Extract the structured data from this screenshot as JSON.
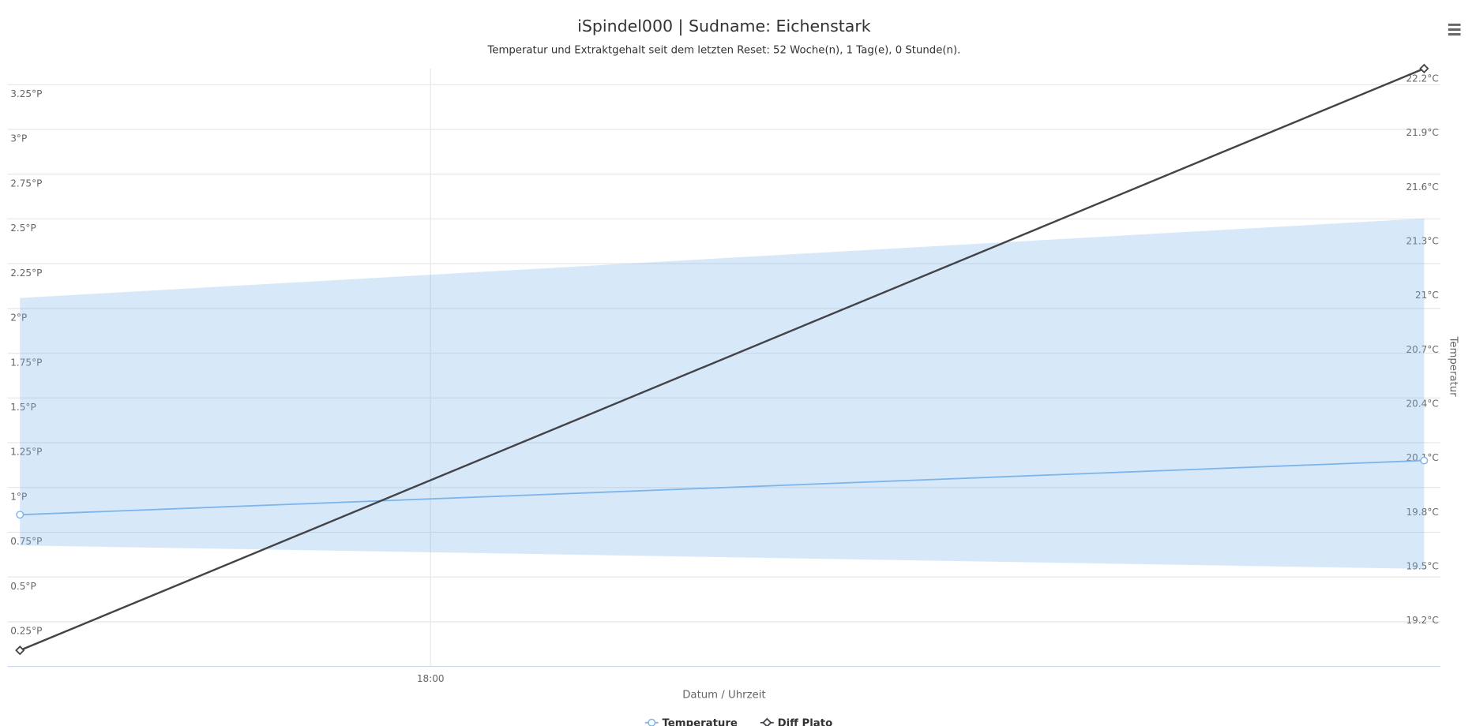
{
  "chart_data": {
    "type": "line",
    "title": "iSpindel000 | Sudname: Eichenstark",
    "subtitle": "Temperatur und Extraktgehalt seit dem letzten Reset: 52 Woche(n), 1 Tag(e), 0 Stunde(n).",
    "x_label": "Datum / Uhrzeit",
    "y2_label": "Temperatur",
    "x": [
      17.0,
      20.42
    ],
    "xlim": [
      16.97,
      20.46
    ],
    "xticks": [
      {
        "value": 18,
        "label": "18:00"
      }
    ],
    "ylim": [
      0,
      3.34
    ],
    "yticks": [
      {
        "value": 0.25,
        "label": "0.25°P"
      },
      {
        "value": 0.5,
        "label": "0.5°P"
      },
      {
        "value": 0.75,
        "label": "0.75°P"
      },
      {
        "value": 1,
        "label": "1°P"
      },
      {
        "value": 1.25,
        "label": "1.25°P"
      },
      {
        "value": 1.5,
        "label": "1.5°P"
      },
      {
        "value": 1.75,
        "label": "1.75°P"
      },
      {
        "value": 2,
        "label": "2°P"
      },
      {
        "value": 2.25,
        "label": "2.25°P"
      },
      {
        "value": 2.5,
        "label": "2.5°P"
      },
      {
        "value": 2.75,
        "label": "2.75°P"
      },
      {
        "value": 3,
        "label": "3°P"
      },
      {
        "value": 3.25,
        "label": "3.25°P"
      }
    ],
    "y2lim": [
      18.92,
      22.23
    ],
    "y2ticks": [
      {
        "value": 19.2,
        "label": "19.2°C"
      },
      {
        "value": 19.5,
        "label": "19.5°C"
      },
      {
        "value": 19.8,
        "label": "19.8°C"
      },
      {
        "value": 20.1,
        "label": "20.1°C"
      },
      {
        "value": 20.4,
        "label": "20.4°C"
      },
      {
        "value": 20.7,
        "label": "20.7°C"
      },
      {
        "value": 21,
        "label": "21°C"
      },
      {
        "value": 21.3,
        "label": "21.3°C"
      },
      {
        "value": 21.6,
        "label": "21.6°C"
      },
      {
        "value": 21.9,
        "label": "21.9°C"
      },
      {
        "value": 22.2,
        "label": "22.2°C"
      }
    ],
    "grid": true,
    "legend": "bottom",
    "ranges": [
      {
        "color": "#7cb5ec",
        "axis": "y2",
        "low": [
          19.59,
          19.46
        ],
        "high": [
          20.96,
          21.4
        ]
      }
    ],
    "series": [
      {
        "name": "Temperature",
        "color": "#7cb5ec",
        "axis": "y2",
        "marker": "circle",
        "values": [
          19.76,
          20.06
        ]
      },
      {
        "name": "Diff Plato",
        "color": "#434348",
        "marker": "diamond",
        "values": [
          0.09,
          3.34
        ]
      }
    ]
  }
}
